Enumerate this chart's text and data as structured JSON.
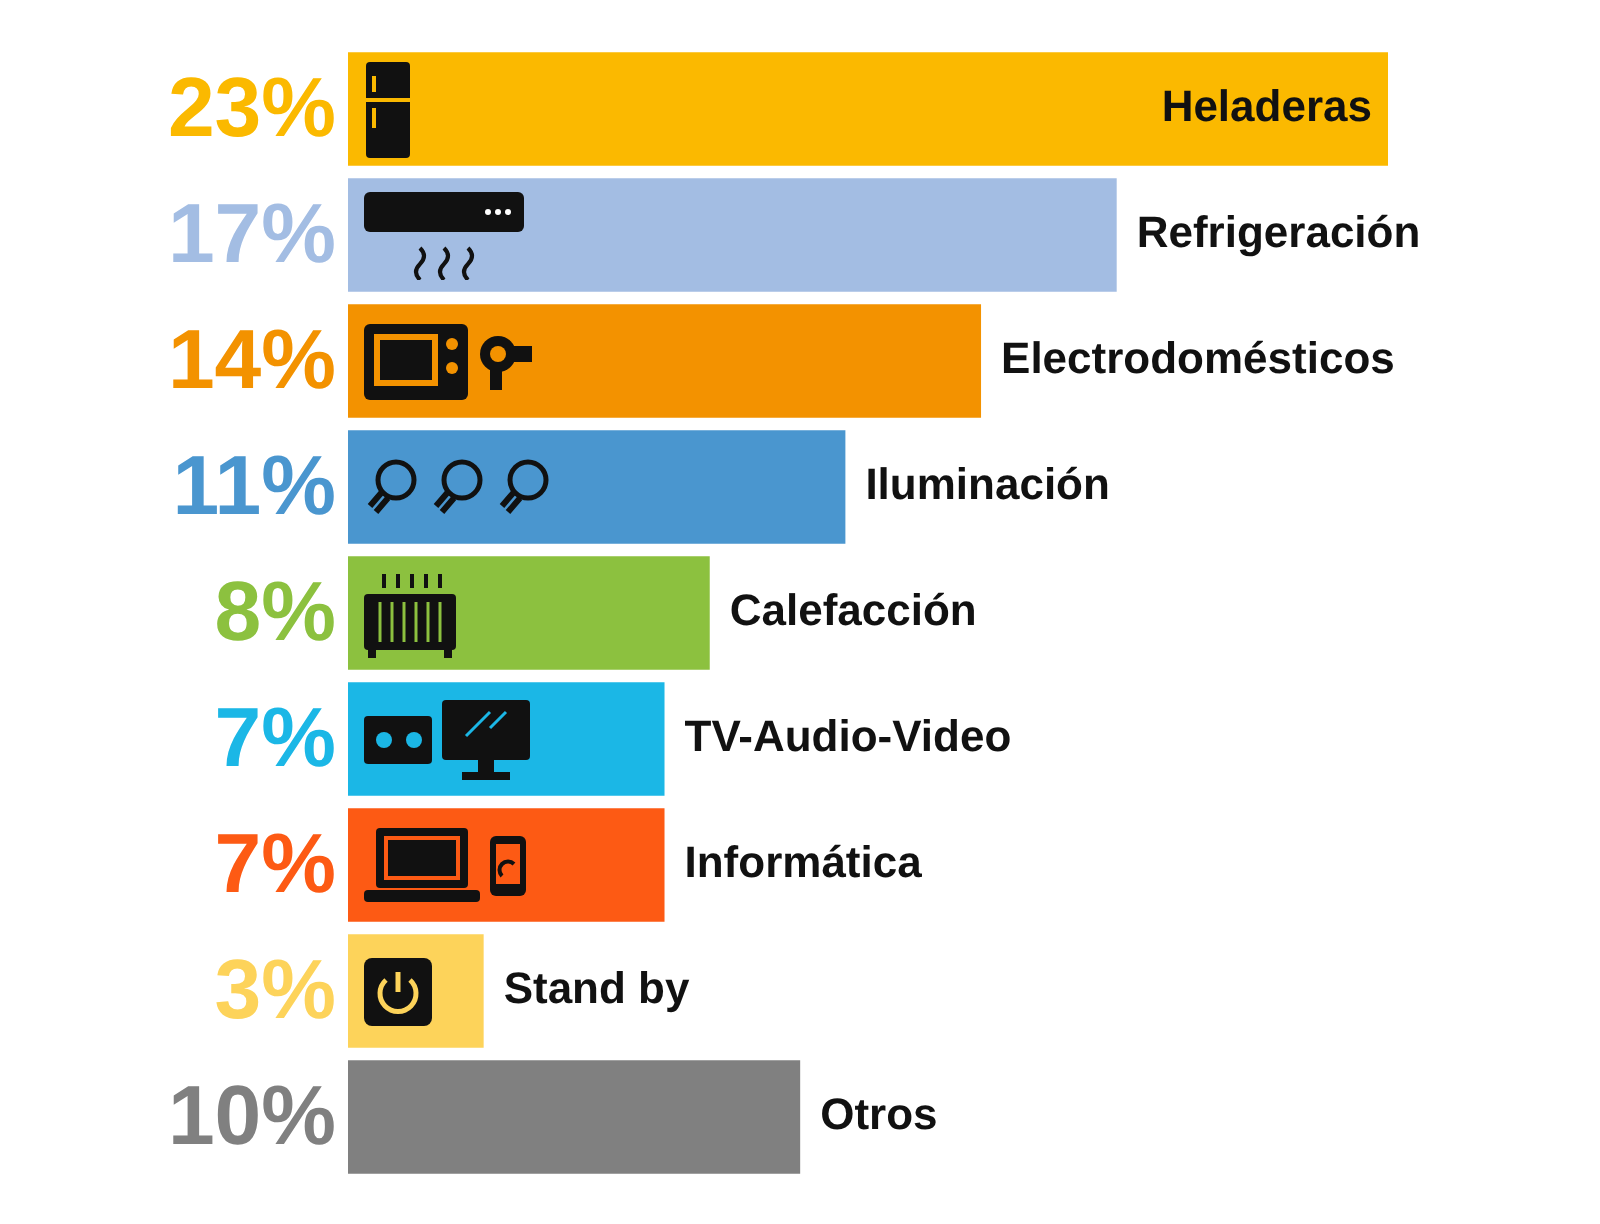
{
  "chart_data": {
    "type": "bar",
    "orientation": "horizontal",
    "categories": [
      "Heladeras",
      "Refrigeración",
      "Electrodomésticos",
      "Iluminación",
      "Calefacción",
      "TV-Audio-Video",
      "Informática",
      "Stand by",
      "Otros"
    ],
    "values": [
      23,
      17,
      14,
      11,
      8,
      7,
      7,
      3,
      10
    ],
    "colors": [
      "#fbb900",
      "#a3bde3",
      "#f39200",
      "#4a96cf",
      "#8cc13f",
      "#1bb7e6",
      "#fd5a14",
      "#fdd35a",
      "#808080"
    ],
    "value_labels": [
      "23%",
      "17%",
      "14%",
      "11%",
      "8%",
      "7%",
      "7%",
      "3%",
      "10%"
    ],
    "legend": false
  }
}
